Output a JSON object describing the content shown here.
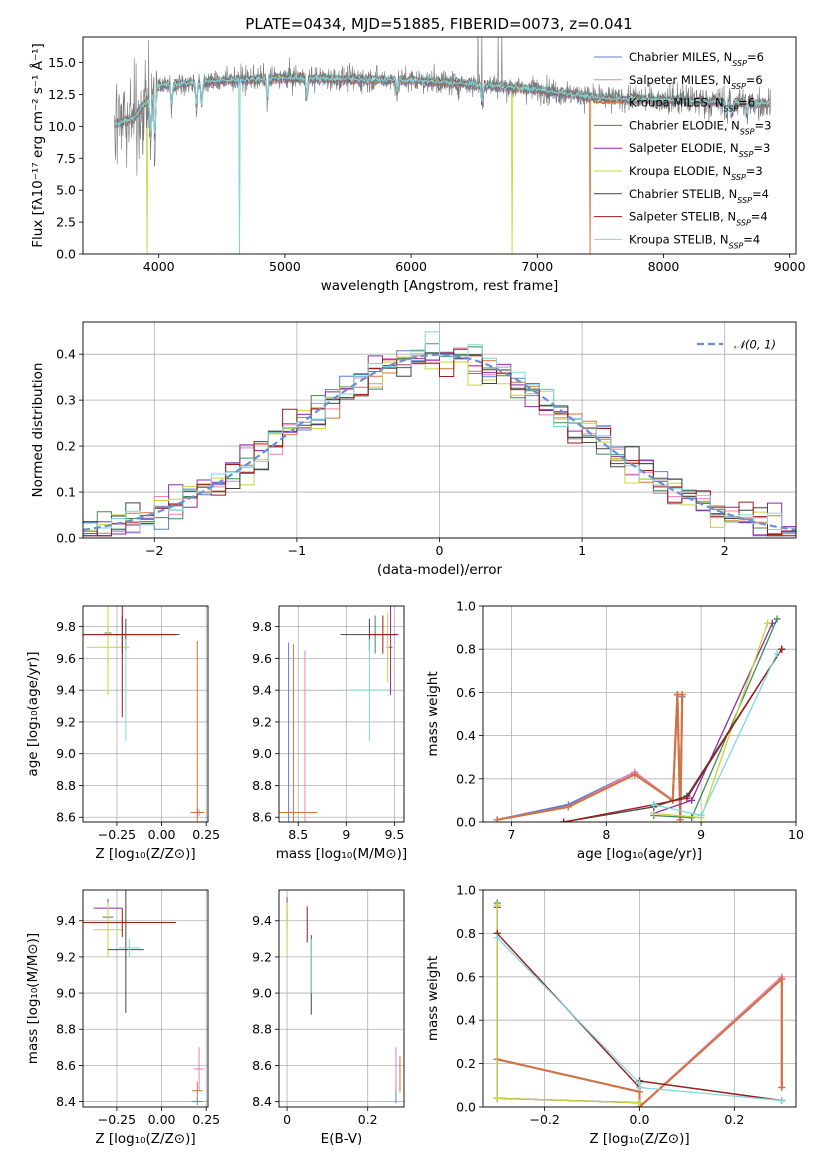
{
  "figure": {
    "title": "PLATE=0434, MJD=51885, FIBERID=0073, z=0.041"
  },
  "series_colors": {
    "Chabrier MILES": "#5b7fd6",
    "Salpeter MILES": "#f07cc1",
    "Kroupa MILES": "#d2743a",
    "Chabrier ELODIE": "#3f8a55",
    "Salpeter ELODIE": "#8b2fa3",
    "Kroupa ELODIE": "#c8d43a",
    "Chabrier STELIB": "#444444",
    "Salpeter STELIB": "#a11a1a",
    "Kroupa STELIB": "#7fd8de"
  },
  "chart_data": [
    {
      "id": "spectrum",
      "type": "line",
      "title": "PLATE=0434, MJD=51885, FIBERID=0073, z=0.041",
      "xlabel": "wavelength [Angstrom, rest frame]",
      "ylabel": "Flux [fλ10⁻¹⁷ erg cm⁻² s⁻¹ Å⁻¹]",
      "xlim": [
        3400,
        9050
      ],
      "ylim": [
        0,
        17
      ],
      "xticks": [
        4000,
        5000,
        6000,
        7000,
        8000,
        9000
      ],
      "yticks": [
        0.0,
        2.5,
        5.0,
        7.5,
        10.0,
        12.5,
        15.0
      ],
      "grid": false,
      "legend_position": "top-right",
      "legend": [
        {
          "name": "Chabrier MILES",
          "label": "Chabrier MILES, N",
          "sub": "SSP",
          "suffix": "=6",
          "color": "#5b7fd6"
        },
        {
          "name": "Salpeter MILES",
          "label": "Salpeter MILES, N",
          "sub": "SSP",
          "suffix": "=6",
          "color": "#f07cc1"
        },
        {
          "name": "Kroupa MILES",
          "label": "Kroupa MILES, N",
          "sub": "SSP",
          "suffix": "=6",
          "color": "#d2743a"
        },
        {
          "name": "Chabrier ELODIE",
          "label": "Chabrier ELODIE, N",
          "sub": "SSP",
          "suffix": "=3",
          "color": "#3f8a55"
        },
        {
          "name": "Salpeter ELODIE",
          "label": "Salpeter ELODIE, N",
          "sub": "SSP",
          "suffix": "=3",
          "color": "#8b2fa3"
        },
        {
          "name": "Kroupa ELODIE",
          "label": "Kroupa ELODIE, N",
          "sub": "SSP",
          "suffix": "=3",
          "color": "#c8d43a"
        },
        {
          "name": "Chabrier STELIB",
          "label": "Chabrier STELIB, N",
          "sub": "SSP",
          "suffix": "=4",
          "color": "#444444"
        },
        {
          "name": "Salpeter STELIB",
          "label": "Salpeter STELIB, N",
          "sub": "SSP",
          "suffix": "=4",
          "color": "#a11a1a"
        },
        {
          "name": "Kroupa STELIB",
          "label": "Kroupa STELIB, N",
          "sub": "SSP",
          "suffix": "=4",
          "color": "#7fd8de"
        }
      ],
      "data_range": [
        3650,
        8850
      ],
      "continuum_points": [
        [
          3650,
          10.2
        ],
        [
          3800,
          10.6
        ],
        [
          4000,
          13.2
        ],
        [
          4500,
          13.6
        ],
        [
          5000,
          13.8
        ],
        [
          5500,
          13.7
        ],
        [
          6000,
          13.6
        ],
        [
          6500,
          13.3
        ],
        [
          7000,
          12.9
        ],
        [
          7500,
          12.2
        ],
        [
          8000,
          12.1
        ],
        [
          8500,
          11.9
        ],
        [
          8850,
          11.8
        ]
      ],
      "model_features": [
        [
          3934,
          3.0
        ],
        [
          3969,
          3.5
        ],
        [
          4102,
          1.5
        ],
        [
          4300,
          1.8
        ],
        [
          4340,
          1.8
        ],
        [
          4861,
          1.5
        ],
        [
          5175,
          1.5
        ],
        [
          5890,
          0.9
        ],
        [
          6563,
          1.5
        ],
        [
          8500,
          1.0
        ],
        [
          8542,
          1.0
        ],
        [
          8662,
          1.0
        ]
      ],
      "model_dropouts": [
        {
          "series": "Kroupa STELIB",
          "wavelength": 4640
        },
        {
          "series": "Kroupa ELODIE",
          "wavelength": 3910
        },
        {
          "series": "Kroupa ELODIE",
          "wavelength": 6800
        },
        {
          "series": "Kroupa MILES",
          "wavelength": 7420
        }
      ],
      "observed_series": "Chabrier STELIB",
      "observed_spikes": [
        6530,
        6560,
        6690,
        6720
      ]
    },
    {
      "id": "residuals",
      "type": "histogram",
      "xlabel": "(data-model)/error",
      "ylabel": "Normed distribution",
      "xlim": [
        -2.5,
        2.5
      ],
      "ylim": [
        0,
        0.47
      ],
      "xticks": [
        -2,
        -1,
        0,
        1,
        2
      ],
      "yticks": [
        0.0,
        0.1,
        0.2,
        0.3,
        0.4
      ],
      "grid": true,
      "bin_width": 0.1,
      "legend_position": "top-right",
      "reference": {
        "label": "𝒩(0, 1)",
        "color": "#6a8fd4",
        "style": "dashed",
        "mean": 0,
        "sigma": 1
      }
    },
    {
      "id": "age-vs-Z",
      "type": "errorbar",
      "xlabel": "Z [log₁₀(Z/Z⊙)]",
      "ylabel": "age  [log₁₀(age/yr)]",
      "xlim": [
        -0.44,
        0.26
      ],
      "ylim": [
        8.57,
        9.93
      ],
      "xticks": [
        -0.25,
        0.0,
        0.25
      ],
      "xtick_labels": [
        "−0.25",
        "0.00",
        "0.25"
      ],
      "yticks": [
        8.6,
        8.8,
        9.0,
        9.2,
        9.4,
        9.6,
        9.8
      ],
      "grid": true,
      "points": [
        {
          "series": "Chabrier MILES",
          "x": 0.2,
          "xerr": 0.03,
          "y": 8.63,
          "yerr": 0.03
        },
        {
          "series": "Salpeter MILES",
          "x": 0.21,
          "xerr": 0.02,
          "y": 8.63,
          "yerr": 0.02
        },
        {
          "series": "Kroupa MILES",
          "x": 0.2,
          "xerr": 0.04,
          "y": 8.63,
          "yerr": 1.08
        },
        {
          "series": "Chabrier ELODIE",
          "x": -0.3,
          "xerr": 0.02,
          "y": 9.76,
          "yerr": 0.12
        },
        {
          "series": "Salpeter ELODIE",
          "x": -0.22,
          "xerr": 0.02,
          "y": 9.75,
          "yerr": 0.12
        },
        {
          "series": "Kroupa ELODIE",
          "x": -0.3,
          "xerr": 0.12,
          "y": 9.67,
          "yerr": 0.3
        },
        {
          "series": "Chabrier STELIB",
          "x": -0.2,
          "xerr": 0.3,
          "y": 9.75,
          "yerr": 0.1
        },
        {
          "series": "Salpeter STELIB",
          "x": -0.22,
          "xerr": 0.3,
          "y": 9.75,
          "yerr": 0.52
        },
        {
          "series": "Kroupa STELIB",
          "x": -0.2,
          "xerr": 0.01,
          "y": 9.4,
          "yerr": 0.32
        }
      ]
    },
    {
      "id": "age-vs-mass",
      "type": "errorbar",
      "xlabel": "mass [log₁₀(M/M⊙)]",
      "ylabel": "",
      "xlim": [
        8.3,
        9.6
      ],
      "ylim": [
        8.57,
        9.93
      ],
      "xticks": [
        8.5,
        9.0,
        9.5
      ],
      "yticks": [
        8.6,
        8.8,
        9.0,
        9.2,
        9.4,
        9.6,
        9.8
      ],
      "grid": true,
      "points": [
        {
          "series": "Chabrier MILES",
          "x": 8.4,
          "xerr": 0.02,
          "y": 8.63,
          "yerr": 1.07
        },
        {
          "series": "Salpeter MILES",
          "x": 8.57,
          "xerr": 0.02,
          "y": 8.63,
          "yerr": 1.02
        },
        {
          "series": "Kroupa MILES",
          "x": 8.45,
          "xerr": 0.25,
          "y": 8.63,
          "yerr": 1.06
        },
        {
          "series": "Chabrier ELODIE",
          "x": 9.3,
          "xerr": 0.02,
          "y": 9.75,
          "yerr": 0.12
        },
        {
          "series": "Salpeter ELODIE",
          "x": 9.46,
          "xerr": 0.02,
          "y": 9.67,
          "yerr": 0.3
        },
        {
          "series": "Kroupa ELODIE",
          "x": 9.43,
          "xerr": 0.02,
          "y": 9.67,
          "yerr": 0.22
        },
        {
          "series": "Chabrier STELIB",
          "x": 9.24,
          "xerr": 0.3,
          "y": 9.75,
          "yerr": 0.1
        },
        {
          "series": "Salpeter STELIB",
          "x": 9.38,
          "xerr": 0.15,
          "y": 9.75,
          "yerr": 0.12
        },
        {
          "series": "Kroupa STELIB",
          "x": 9.24,
          "xerr": 0.2,
          "y": 9.4,
          "yerr": 0.32
        }
      ]
    },
    {
      "id": "mass-weight-vs-age",
      "type": "line",
      "xlabel": "age  [log₁₀(age/yr)]",
      "ylabel": "mass weight",
      "xlim": [
        6.7,
        10.0
      ],
      "ylim": [
        0.0,
        1.0
      ],
      "xticks": [
        7,
        8,
        9,
        10
      ],
      "yticks": [
        0.0,
        0.2,
        0.4,
        0.6,
        0.8,
        1.0
      ],
      "grid": true,
      "series": [
        {
          "name": "Chabrier MILES",
          "x": [
            6.85,
            7.6,
            8.3,
            8.7,
            8.75,
            8.78,
            8.8
          ],
          "y": [
            0.01,
            0.08,
            0.23,
            0.1,
            0.59,
            0.01,
            0.58
          ]
        },
        {
          "name": "Salpeter MILES",
          "x": [
            6.85,
            7.6,
            8.3,
            8.7,
            8.75,
            8.78,
            8.8
          ],
          "y": [
            0.01,
            0.07,
            0.23,
            0.1,
            0.59,
            0.01,
            0.59
          ]
        },
        {
          "name": "Kroupa MILES",
          "x": [
            6.85,
            7.6,
            8.3,
            8.7,
            8.75,
            8.78,
            8.8
          ],
          "y": [
            0.01,
            0.07,
            0.22,
            0.1,
            0.59,
            0.01,
            0.59
          ]
        },
        {
          "name": "Chabrier ELODIE",
          "x": [
            8.5,
            8.9,
            9.8
          ],
          "y": [
            0.03,
            0.02,
            0.94
          ]
        },
        {
          "name": "Salpeter ELODIE",
          "x": [
            8.5,
            8.9,
            9.75
          ],
          "y": [
            0.04,
            0.1,
            0.92
          ]
        },
        {
          "name": "Kroupa ELODIE",
          "x": [
            8.5,
            9.0,
            9.7
          ],
          "y": [
            0.04,
            0.02,
            0.92
          ]
        },
        {
          "name": "Chabrier STELIB",
          "x": [
            7.55,
            8.5,
            8.85,
            9.85
          ],
          "y": [
            0.0,
            0.07,
            0.12,
            0.8
          ]
        },
        {
          "name": "Salpeter STELIB",
          "x": [
            7.55,
            8.5,
            8.85,
            9.85
          ],
          "y": [
            0.0,
            0.08,
            0.11,
            0.8
          ]
        },
        {
          "name": "Kroupa STELIB",
          "x": [
            8.5,
            9.0,
            9.8
          ],
          "y": [
            0.08,
            0.03,
            0.78
          ]
        }
      ]
    },
    {
      "id": "mass-vs-Z",
      "type": "errorbar",
      "xlabel": "Z [log₁₀(Z/Z⊙)]",
      "ylabel": "mass [log₁₀(M/M⊙)]",
      "xlim": [
        -0.44,
        0.26
      ],
      "ylim": [
        8.37,
        9.57
      ],
      "xticks": [
        -0.25,
        0.0,
        0.25
      ],
      "xtick_labels": [
        "−0.25",
        "0.00",
        "0.25"
      ],
      "yticks": [
        8.4,
        8.6,
        8.8,
        9.0,
        9.2,
        9.4
      ],
      "grid": true,
      "points": [
        {
          "series": "Chabrier MILES",
          "x": 0.2,
          "xerr": 0.03,
          "y": 8.4,
          "yerr": 0.02
        },
        {
          "series": "Salpeter MILES",
          "x": 0.21,
          "xerr": 0.03,
          "y": 8.58,
          "yerr": 0.12
        },
        {
          "series": "Kroupa MILES",
          "x": 0.2,
          "xerr": 0.03,
          "y": 8.46,
          "yerr": 0.05
        },
        {
          "series": "Chabrier ELODIE",
          "x": -0.3,
          "xerr": 0.03,
          "y": 9.42,
          "yerr": 0.08
        },
        {
          "series": "Salpeter ELODIE",
          "x": -0.3,
          "xerr": 0.08,
          "y": 9.47,
          "yerr": 0.05
        },
        {
          "series": "Kroupa ELODIE",
          "x": -0.3,
          "xerr": 0.08,
          "y": 9.35,
          "yerr": 0.15
        },
        {
          "series": "Chabrier STELIB",
          "x": -0.2,
          "xerr": 0.1,
          "y": 9.24,
          "yerr": 0.35
        },
        {
          "series": "Salpeter STELIB",
          "x": -0.22,
          "xerr": 0.3,
          "y": 9.39,
          "yerr": 0.08
        },
        {
          "series": "Kroupa STELIB",
          "x": -0.18,
          "xerr": 0.06,
          "y": 9.25,
          "yerr": 0.05
        }
      ]
    },
    {
      "id": "mass-vs-EBV",
      "type": "errorbar",
      "xlabel": "E(B-V)",
      "ylabel": "",
      "xlim": [
        -0.02,
        0.29
      ],
      "ylim": [
        8.37,
        9.57
      ],
      "xticks": [
        0.0,
        0.2
      ],
      "yticks": [
        8.4,
        8.6,
        8.8,
        9.0,
        9.2,
        9.4
      ],
      "grid": true,
      "points": [
        {
          "series": "Chabrier MILES",
          "x": 0.27,
          "xerr": 0.0,
          "y": 8.45,
          "yerr": 0.06
        },
        {
          "series": "Salpeter MILES",
          "x": 0.27,
          "xerr": 0.0,
          "y": 8.58,
          "yerr": 0.12
        },
        {
          "series": "Kroupa MILES",
          "x": 0.28,
          "xerr": 0.0,
          "y": 8.55,
          "yerr": 0.1
        },
        {
          "series": "Chabrier ELODIE",
          "x": 0.0,
          "xerr": 0.0,
          "y": 9.4,
          "yerr": 0.05
        },
        {
          "series": "Salpeter ELODIE",
          "x": 0.0,
          "xerr": 0.0,
          "y": 9.47,
          "yerr": 0.06
        },
        {
          "series": "Kroupa ELODIE",
          "x": 0.0,
          "xerr": 0.0,
          "y": 9.35,
          "yerr": 0.15
        },
        {
          "series": "Chabrier STELIB",
          "x": 0.06,
          "xerr": 0.0,
          "y": 9.1,
          "yerr": 0.22
        },
        {
          "series": "Salpeter STELIB",
          "x": 0.05,
          "xerr": 0.0,
          "y": 9.38,
          "yerr": 0.1
        },
        {
          "series": "Kroupa STELIB",
          "x": 0.06,
          "xerr": 0.0,
          "y": 9.15,
          "yerr": 0.15
        }
      ]
    },
    {
      "id": "mass-weight-vs-Z",
      "type": "line",
      "xlabel": "Z [log₁₀(Z/Z⊙)]",
      "ylabel": "mass weight",
      "xlim": [
        -0.33,
        0.33
      ],
      "ylim": [
        0.0,
        1.0
      ],
      "xticks": [
        -0.2,
        0.0,
        0.2
      ],
      "xtick_labels": [
        "−0.2",
        "0.0",
        "0.2"
      ],
      "yticks": [
        0.0,
        0.2,
        0.4,
        0.6,
        0.8,
        1.0
      ],
      "grid": true,
      "series": [
        {
          "name": "Chabrier MILES",
          "x": [
            -0.3,
            0.0,
            0.0,
            0.3,
            0.3
          ],
          "y": [
            0.22,
            0.07,
            0.0,
            0.59,
            0.09
          ]
        },
        {
          "name": "Salpeter MILES",
          "x": [
            -0.3,
            0.0,
            0.0,
            0.3,
            0.3
          ],
          "y": [
            0.22,
            0.07,
            0.0,
            0.6,
            0.09
          ]
        },
        {
          "name": "Kroupa MILES",
          "x": [
            -0.3,
            0.0,
            0.0,
            0.3,
            0.3
          ],
          "y": [
            0.22,
            0.07,
            0.0,
            0.59,
            0.09
          ]
        },
        {
          "name": "Chabrier ELODIE",
          "x": [
            -0.3,
            -0.3,
            0.0
          ],
          "y": [
            0.94,
            0.04,
            0.02
          ]
        },
        {
          "name": "Salpeter ELODIE",
          "x": [
            -0.3,
            -0.3,
            0.0
          ],
          "y": [
            0.92,
            0.04,
            0.02
          ]
        },
        {
          "name": "Kroupa ELODIE",
          "x": [
            -0.3,
            -0.3,
            0.0
          ],
          "y": [
            0.93,
            0.04,
            0.02
          ]
        },
        {
          "name": "Chabrier STELIB",
          "x": [
            -0.3,
            0.0,
            0.0,
            0.3
          ],
          "y": [
            0.8,
            0.09,
            0.12,
            0.03
          ]
        },
        {
          "name": "Salpeter STELIB",
          "x": [
            -0.3,
            0.0,
            0.0,
            0.3
          ],
          "y": [
            0.8,
            0.09,
            0.12,
            0.03
          ]
        },
        {
          "name": "Kroupa STELIB",
          "x": [
            -0.3,
            0.0,
            0.0,
            0.3
          ],
          "y": [
            0.78,
            0.11,
            0.09,
            0.03
          ]
        }
      ]
    }
  ]
}
